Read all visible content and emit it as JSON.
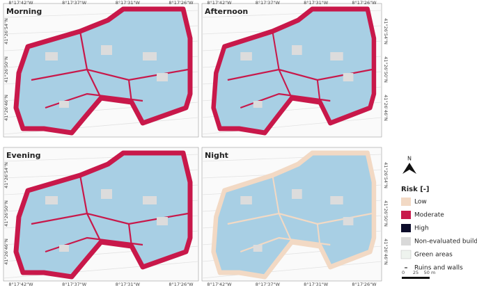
{
  "panels": [
    {
      "title": "Morning"
    },
    {
      "title": "Afternoon"
    },
    {
      "title": "Evening"
    },
    {
      "title": "Night"
    }
  ],
  "coordinates": {
    "longitude": [
      "8°17'42\"W",
      "8°17'37\"W",
      "8°17'31\"W",
      "8°17'26\"W"
    ],
    "latitude": [
      "41°26'54\"N",
      "41°26'50\"N",
      "41°26'46\"N"
    ]
  },
  "legend": {
    "title": "Risk [-]",
    "items": [
      {
        "label": "Low",
        "color": "#f2d9c4"
      },
      {
        "label": "Moderate",
        "color": "#c8184a"
      },
      {
        "label": "High",
        "color": "#0d0d2b"
      },
      {
        "label": "Non-evaluated buildings",
        "color": "#d9d9d9"
      },
      {
        "label": "Green areas",
        "color": "#eef3ee"
      },
      {
        "label": "Ruins and walls",
        "color": "#555555"
      }
    ]
  },
  "north": "N",
  "scale_bar": [
    "0",
    "25",
    "50 m"
  ]
}
